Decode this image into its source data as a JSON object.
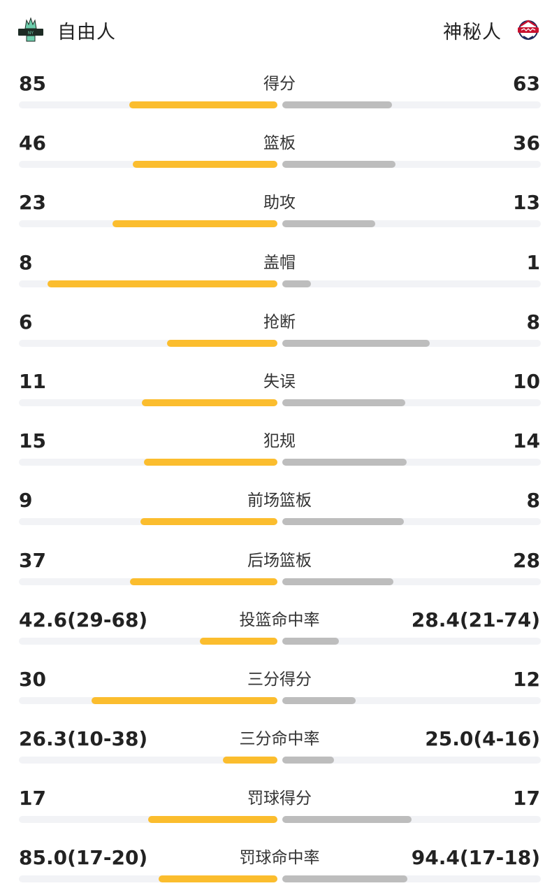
{
  "home": {
    "name": "自由人",
    "logo_icon": "liberty-logo-icon",
    "bar_color": "#fbbd2e"
  },
  "away": {
    "name": "神秘人",
    "logo_icon": "mystics-logo-icon",
    "bar_color": "#bdbdbd"
  },
  "stats": [
    {
      "label": "得分",
      "home": "85",
      "away": "63",
      "home_ratio": 0.574,
      "away_ratio": 0.425
    },
    {
      "label": "篮板",
      "home": "46",
      "away": "36",
      "home_ratio": 0.56,
      "away_ratio": 0.438
    },
    {
      "label": "助攻",
      "home": "23",
      "away": "13",
      "home_ratio": 0.638,
      "away_ratio": 0.36
    },
    {
      "label": "盖帽",
      "home": "8",
      "away": "1",
      "home_ratio": 0.89,
      "away_ratio": 0.111
    },
    {
      "label": "抢断",
      "home": "6",
      "away": "8",
      "home_ratio": 0.428,
      "away_ratio": 0.571
    },
    {
      "label": "失误",
      "home": "11",
      "away": "10",
      "home_ratio": 0.523,
      "away_ratio": 0.476
    },
    {
      "label": "犯规",
      "home": "15",
      "away": "14",
      "home_ratio": 0.517,
      "away_ratio": 0.482
    },
    {
      "label": "前场篮板",
      "home": "9",
      "away": "8",
      "home_ratio": 0.529,
      "away_ratio": 0.47
    },
    {
      "label": "后场篮板",
      "home": "37",
      "away": "28",
      "home_ratio": 0.569,
      "away_ratio": 0.43
    },
    {
      "label": "投篮命中率",
      "home": "42.6(29-68)",
      "away": "28.4(21-74)",
      "home_ratio": 0.3,
      "away_ratio": 0.22
    },
    {
      "label": "三分得分",
      "home": "30",
      "away": "12",
      "home_ratio": 0.72,
      "away_ratio": 0.285
    },
    {
      "label": "三分命中率",
      "home": "26.3(10-38)",
      "away": "25.0(4-16)",
      "home_ratio": 0.21,
      "away_ratio": 0.2
    },
    {
      "label": "罚球得分",
      "home": "17",
      "away": "17",
      "home_ratio": 0.5,
      "away_ratio": 0.5
    },
    {
      "label": "罚球命中率",
      "home": "85.0(17-20)",
      "away": "94.4(17-18)",
      "home_ratio": 0.46,
      "away_ratio": 0.485
    }
  ]
}
